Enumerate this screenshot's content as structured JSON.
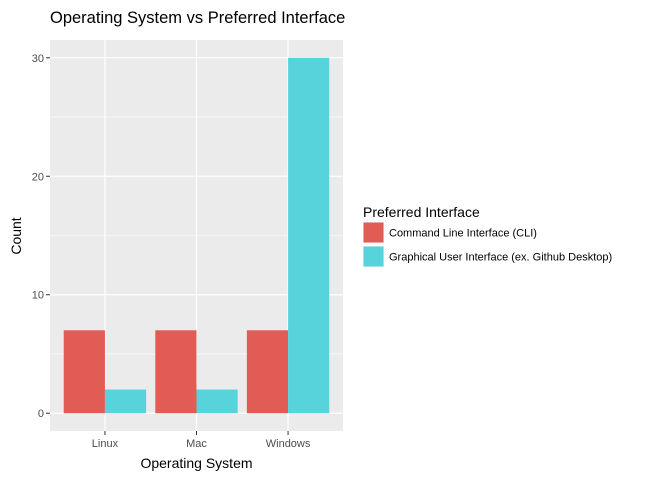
{
  "chart_data": {
    "type": "bar",
    "title": "Operating System vs Preferred Interface",
    "xlabel": "Operating System",
    "ylabel": "Count",
    "categories": [
      "Linux",
      "Mac",
      "Windows"
    ],
    "series": [
      {
        "name": "Command Line Interface (CLI)",
        "values": [
          7,
          7,
          7
        ],
        "color": "#e15c54"
      },
      {
        "name": "Graphical User Interface (ex. Github Desktop)",
        "values": [
          2,
          2,
          30
        ],
        "color": "#57d3db"
      }
    ],
    "ylim": [
      -1.5,
      31.5
    ],
    "yticks": [
      0,
      10,
      20,
      30
    ],
    "grid": true,
    "legend": {
      "title": "Preferred Interface",
      "position": "right"
    },
    "colors": {
      "panel": "#ebebeb",
      "grid": "#ffffff"
    }
  }
}
